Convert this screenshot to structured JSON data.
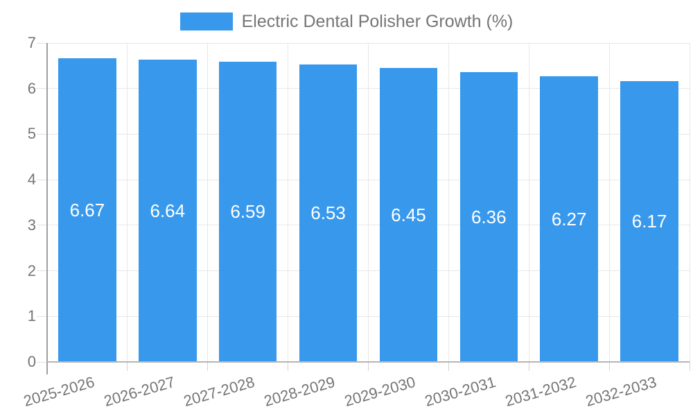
{
  "chart_data": {
    "type": "bar",
    "title": "Electric Dental Polisher Growth (%)",
    "categories": [
      "2025-2026",
      "2026-2027",
      "2027-2028",
      "2028-2029",
      "2029-2030",
      "2030-2031",
      "2031-2032",
      "2032-2033"
    ],
    "values": [
      6.67,
      6.64,
      6.59,
      6.53,
      6.45,
      6.36,
      6.27,
      6.17
    ],
    "value_labels": [
      "6.67",
      "6.64",
      "6.59",
      "6.53",
      "6.45",
      "6.36",
      "6.27",
      "6.17"
    ],
    "xlabel": "",
    "ylabel": "",
    "ylim": [
      0,
      7
    ],
    "yticks": [
      0,
      1,
      2,
      3,
      4,
      5,
      6,
      7
    ],
    "grid": true,
    "legend_position": "top",
    "bar_color": "#3899ec",
    "bar_label_color": "#ffffff",
    "axis_text_color": "#757575",
    "gridline_color": "#e7e7e7"
  }
}
